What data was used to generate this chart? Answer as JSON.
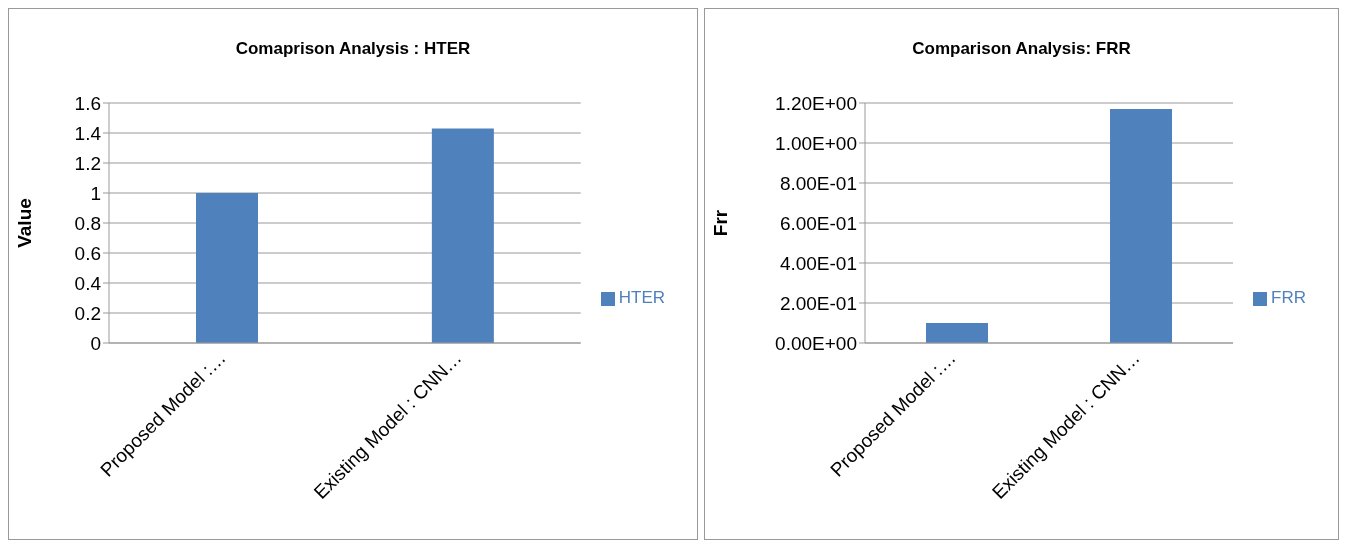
{
  "chart_data": [
    {
      "type": "bar",
      "title": "Comaprison Analysis : HTER",
      "ylabel": "Value",
      "categories": [
        "Proposed Model :…",
        "Existing Model : CNN…"
      ],
      "series": [
        {
          "name": "HTER",
          "color": "#4f81bd",
          "values": [
            1.0,
            1.43
          ]
        }
      ],
      "ylim": [
        0,
        1.6
      ],
      "yticks": [
        0,
        0.2,
        0.4,
        0.6,
        0.8,
        1,
        1.2,
        1.4,
        1.6
      ],
      "grid": "y",
      "legend": "right"
    },
    {
      "type": "bar",
      "title": "Comparison Analysis: FRR",
      "ylabel": "Frr",
      "categories": [
        "Proposed Model :…",
        "Existing Model : CNN…"
      ],
      "series": [
        {
          "name": "FRR",
          "color": "#4f81bd",
          "values": [
            0.1,
            1.17
          ]
        }
      ],
      "ylim": [
        0,
        1.2
      ],
      "yticks": [
        {
          "value": 0,
          "label": "0.00E+00"
        },
        {
          "value": 0.2,
          "label": "2.00E-01"
        },
        {
          "value": 0.4,
          "label": "4.00E-01"
        },
        {
          "value": 0.6,
          "label": "6.00E-01"
        },
        {
          "value": 0.8,
          "label": "8.00E-01"
        },
        {
          "value": 1,
          "label": "1.00E+00"
        },
        {
          "value": 1.2,
          "label": "1.20E+00"
        }
      ],
      "grid": "y",
      "legend": "right"
    }
  ]
}
